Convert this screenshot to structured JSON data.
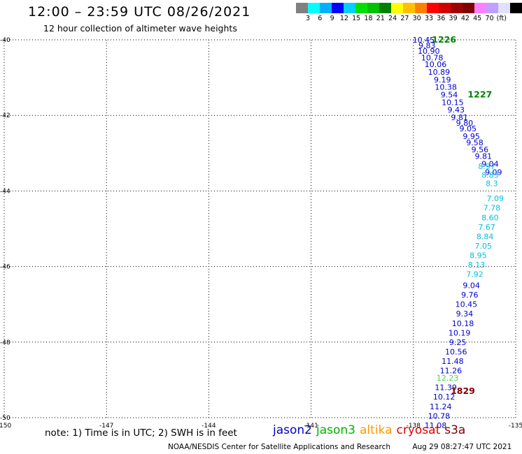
{
  "header": {
    "title": "12:00 – 23:59 UTC 08/26/2021",
    "subtitle": "12 hour collection of altimeter wave heights"
  },
  "color_scale": {
    "colors": [
      "#808080",
      "#00ffff",
      "#00b0ff",
      "#0000ff",
      "#00d0ff",
      "#00e000",
      "#00c000",
      "#008000",
      "#ffff00",
      "#ffc000",
      "#ff8000",
      "#ff0000",
      "#d00000",
      "#a00000",
      "#800000",
      "#ff80ff",
      "#c0a0ff",
      "#e0e0ff",
      "#000000"
    ],
    "labels": [
      "3",
      "6",
      "9",
      "12",
      "15",
      "18",
      "21",
      "24",
      "27",
      "30",
      "33",
      "36",
      "39",
      "42",
      "45",
      "70",
      "(ft)"
    ]
  },
  "chart_data": {
    "type": "scatter",
    "xlim": [
      -150,
      -135
    ],
    "ylim": [
      -50,
      -40
    ],
    "x_ticks": [
      "-150",
      "-147",
      "-144",
      "-141",
      "-138",
      "-135"
    ],
    "y_ticks": [
      "-40",
      "-42",
      "-44",
      "-46",
      "-48",
      "-50"
    ],
    "grid": true,
    "series": [
      {
        "name": "jason2",
        "color": "#0000cc",
        "points": [
          {
            "x": -137.7,
            "y": -40.0,
            "label": "10.45"
          },
          {
            "x": -137.6,
            "y": -40.15,
            "label": "9.83"
          },
          {
            "x": -137.55,
            "y": -40.3,
            "label": "10.90"
          },
          {
            "x": -137.45,
            "y": -40.47,
            "label": "10.78"
          },
          {
            "x": -137.35,
            "y": -40.65,
            "label": "10.06"
          },
          {
            "x": -137.25,
            "y": -40.85,
            "label": "10.89"
          },
          {
            "x": -137.15,
            "y": -41.05,
            "label": "9.19"
          },
          {
            "x": -137.05,
            "y": -41.25,
            "label": "10.38"
          },
          {
            "x": -136.95,
            "y": -41.45,
            "label": "9.54"
          },
          {
            "x": -136.85,
            "y": -41.65,
            "label": "10.15"
          },
          {
            "x": -136.75,
            "y": -41.85,
            "label": "9.43"
          },
          {
            "x": -136.65,
            "y": -42.05,
            "label": "9.81"
          },
          {
            "x": -136.5,
            "y": -42.2,
            "label": "9.80"
          },
          {
            "x": -136.4,
            "y": -42.35,
            "label": "9.05"
          },
          {
            "x": -136.3,
            "y": -42.55,
            "label": "9.95"
          },
          {
            "x": -136.2,
            "y": -42.72,
            "label": "9.58"
          },
          {
            "x": -136.05,
            "y": -42.9,
            "label": "9.56"
          },
          {
            "x": -135.95,
            "y": -43.08,
            "label": "9.81"
          },
          {
            "x": -135.75,
            "y": -43.28,
            "label": "9.04"
          },
          {
            "x": -135.65,
            "y": -43.5,
            "label": "9.09"
          },
          {
            "x": -136.3,
            "y": -46.5,
            "label": "9.04"
          },
          {
            "x": -136.35,
            "y": -46.75,
            "label": "9.76"
          },
          {
            "x": -136.45,
            "y": -47.0,
            "label": "10.45"
          },
          {
            "x": -136.5,
            "y": -47.25,
            "label": "9.34"
          },
          {
            "x": -136.55,
            "y": -47.5,
            "label": "10.18"
          },
          {
            "x": -136.65,
            "y": -47.75,
            "label": "10.19"
          },
          {
            "x": -136.7,
            "y": -48.0,
            "label": "9.25"
          },
          {
            "x": -136.75,
            "y": -48.25,
            "label": "10.56"
          },
          {
            "x": -136.85,
            "y": -48.5,
            "label": "11.48"
          },
          {
            "x": -136.9,
            "y": -48.75,
            "label": "11.26"
          },
          {
            "x": -137.05,
            "y": -49.2,
            "label": "11.39"
          },
          {
            "x": -137.1,
            "y": -49.45,
            "label": "10.12"
          },
          {
            "x": -137.2,
            "y": -49.7,
            "label": "11.24"
          },
          {
            "x": -137.25,
            "y": -49.95,
            "label": "10.78"
          },
          {
            "x": -137.35,
            "y": -50.2,
            "label": "11.08"
          }
        ]
      },
      {
        "name": "jason3",
        "color": "#00c0e0",
        "points": [
          {
            "x": -135.85,
            "y": -43.35,
            "label": "8.97"
          },
          {
            "x": -135.75,
            "y": -43.58,
            "label": "8.83"
          },
          {
            "x": -135.7,
            "y": -43.8,
            "label": "8.3"
          },
          {
            "x": -135.6,
            "y": -44.2,
            "label": "7.09"
          },
          {
            "x": -135.7,
            "y": -44.45,
            "label": "7.78"
          },
          {
            "x": -135.75,
            "y": -44.7,
            "label": "8.60"
          },
          {
            "x": -135.85,
            "y": -44.95,
            "label": "7.67"
          },
          {
            "x": -135.9,
            "y": -45.2,
            "label": "8.84"
          },
          {
            "x": -135.95,
            "y": -45.45,
            "label": "7.05"
          },
          {
            "x": -136.1,
            "y": -45.7,
            "label": "8.95"
          },
          {
            "x": -136.15,
            "y": -45.95,
            "label": "8.13"
          },
          {
            "x": -136.2,
            "y": -46.2,
            "label": "7.92"
          }
        ]
      },
      {
        "name": "altika",
        "color": "#40e040",
        "points": [
          {
            "x": -137.0,
            "y": -48.95,
            "label": "12.23"
          }
        ]
      }
    ],
    "time_labels": [
      {
        "x": -137.1,
        "y": -40.0,
        "label": "1226",
        "color": "#008000"
      },
      {
        "x": -136.05,
        "y": -41.45,
        "label": "1227",
        "color": "#008000"
      },
      {
        "x": -136.55,
        "y": -49.3,
        "label": "1829",
        "color": "#800000"
      }
    ]
  },
  "footer": {
    "note": "note: 1) Time is in UTC; 2) SWH is in feet",
    "legend": [
      {
        "label": "jason2",
        "color": "#0000cc"
      },
      {
        "label": "jason3",
        "color": "#00b000"
      },
      {
        "label": "altika",
        "color": "#ff9900"
      },
      {
        "label": "cryosat",
        "color": "#dd0000"
      },
      {
        "label": "s3a",
        "color": "#800000"
      }
    ],
    "credit": "NOAA/NESDIS Center for Satellite Applications and Research",
    "timestamp": "Aug 29 08:27:47 UTC 2021"
  }
}
